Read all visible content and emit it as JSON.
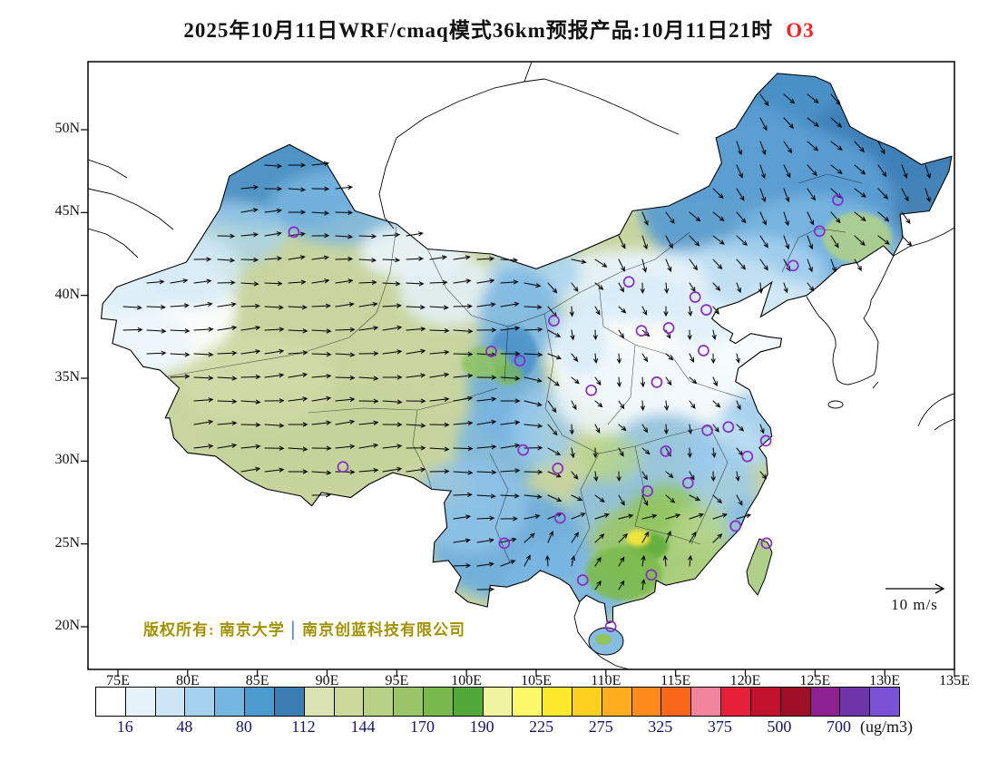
{
  "title": {
    "main": "2025年10月11日WRF/cmaq模式36km预报产品:10月11日21时",
    "pollutant": "O3",
    "pollutant_color": "#ff2020"
  },
  "axes": {
    "lat_labels": [
      "50N",
      "45N",
      "40N",
      "35N",
      "30N",
      "25N",
      "20N"
    ],
    "lon_labels": [
      "75E",
      "80E",
      "85E",
      "90E",
      "95E",
      "100E",
      "105E",
      "110E",
      "115E",
      "120E",
      "125E",
      "130E",
      "135E"
    ]
  },
  "colorbar": {
    "tick_labels": [
      "16",
      "48",
      "80",
      "112",
      "144",
      "170",
      "190",
      "225",
      "275",
      "325",
      "375",
      "500",
      "700"
    ],
    "unit": "(ug/m3)",
    "colors": [
      "#FFFFFF",
      "#E6F3FB",
      "#CDE7F7",
      "#A5D2EF",
      "#76B7E2",
      "#4C9ACE",
      "#3A7EB4",
      "#DCE3B2",
      "#CBDA9A",
      "#B6D185",
      "#9AC669",
      "#79B94C",
      "#52A93A",
      "#EFF4A0",
      "#FAF868",
      "#FFE92D",
      "#FFD020",
      "#FFAE20",
      "#FF8B1D",
      "#F8671A",
      "#F2849E",
      "#E81F38",
      "#C3122E",
      "#9E0E27",
      "#8E2190",
      "#6E35A8",
      "#7B52D6"
    ]
  },
  "annotations": {
    "copyright_prefix": "版权所有: 南京大学",
    "copyright_divider": "│",
    "copyright_suffix": "南京创蓝科技有限公司",
    "wind_scale_label": "10 m/s"
  },
  "stations": {
    "marker_color": "#8a2bc8",
    "points": [
      [
        126.63,
        45.75
      ],
      [
        125.32,
        43.88
      ],
      [
        123.43,
        41.8
      ],
      [
        116.4,
        39.9
      ],
      [
        117.2,
        39.13
      ],
      [
        114.51,
        38.04
      ],
      [
        112.55,
        37.87
      ],
      [
        111.65,
        40.82
      ],
      [
        87.62,
        43.82
      ],
      [
        103.83,
        36.06
      ],
      [
        101.78,
        36.62
      ],
      [
        106.27,
        38.47
      ],
      [
        108.95,
        34.27
      ],
      [
        113.65,
        34.76
      ],
      [
        117.0,
        36.67
      ],
      [
        117.27,
        31.86
      ],
      [
        118.78,
        32.06
      ],
      [
        121.47,
        31.23
      ],
      [
        120.15,
        30.28
      ],
      [
        114.3,
        30.6
      ],
      [
        112.98,
        28.19
      ],
      [
        115.89,
        28.68
      ],
      [
        119.3,
        26.08
      ],
      [
        121.52,
        25.04
      ],
      [
        113.26,
        23.13
      ],
      [
        108.33,
        22.82
      ],
      [
        110.35,
        20.02
      ],
      [
        106.71,
        26.57
      ],
      [
        102.71,
        25.04
      ],
      [
        104.07,
        30.67
      ],
      [
        106.55,
        29.56
      ],
      [
        91.14,
        29.65
      ]
    ]
  },
  "chart_data": {
    "type": "heatmap",
    "variable": "O3",
    "unit": "ug/m3",
    "model": "WRF/cmaq",
    "resolution": "36km",
    "run_date": "2025年10月11日",
    "forecast_time": "10月11日21时",
    "lon_ticks": [
      75,
      80,
      85,
      90,
      95,
      100,
      105,
      110,
      115,
      120,
      125,
      130,
      135
    ],
    "lat_ticks": [
      20,
      25,
      30,
      35,
      40,
      45,
      50
    ],
    "color_levels": [
      16,
      48,
      80,
      112,
      144,
      170,
      190,
      225,
      275,
      325,
      375,
      500,
      700
    ],
    "wind_reference_ms": 10,
    "legend_position": "bottom"
  }
}
